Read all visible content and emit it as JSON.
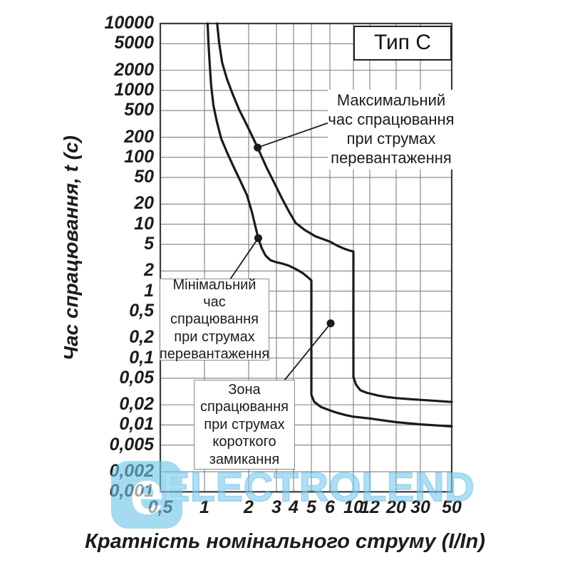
{
  "watermark": {
    "brand": "ELECTROLEND",
    "logo_letter": "e",
    "color": "#7dcdef"
  },
  "chart_data": {
    "type": "line",
    "title": "Тип С",
    "xlabel": "Кратність номінального струму (I/In)",
    "ylabel": "Час спрацювання, t (с)",
    "x_scale": "log",
    "y_scale": "log",
    "xlim": [
      0.5,
      50
    ],
    "ylim": [
      0.001,
      10000
    ],
    "grid": true,
    "x_ticks": [
      {
        "value": 0.5,
        "label": "0,5"
      },
      {
        "value": 1,
        "label": "1"
      },
      {
        "value": 2,
        "label": "2"
      },
      {
        "value": 3,
        "label": "3"
      },
      {
        "value": 4,
        "label": "4"
      },
      {
        "value": 5,
        "label": "5"
      },
      {
        "value": 6,
        "label": "6"
      },
      {
        "value": 10,
        "label": "10"
      },
      {
        "value": 12,
        "label": "12"
      },
      {
        "value": 20,
        "label": "20"
      },
      {
        "value": 30,
        "label": "30"
      },
      {
        "value": 50,
        "label": "50"
      }
    ],
    "y_ticks": [
      {
        "value": 10000,
        "label": "10000"
      },
      {
        "value": 5000,
        "label": "5000"
      },
      {
        "value": 2000,
        "label": "2000"
      },
      {
        "value": 1000,
        "label": "1000"
      },
      {
        "value": 500,
        "label": "500"
      },
      {
        "value": 200,
        "label": "200"
      },
      {
        "value": 100,
        "label": "100"
      },
      {
        "value": 50,
        "label": "50"
      },
      {
        "value": 20,
        "label": "20"
      },
      {
        "value": 10,
        "label": "10"
      },
      {
        "value": 5,
        "label": "5"
      },
      {
        "value": 2,
        "label": "2"
      },
      {
        "value": 1,
        "label": "1"
      },
      {
        "value": 0.5,
        "label": "0,5"
      },
      {
        "value": 0.2,
        "label": "0,2"
      },
      {
        "value": 0.1,
        "label": "0,1"
      },
      {
        "value": 0.05,
        "label": "0,05"
      },
      {
        "value": 0.02,
        "label": "0,02"
      },
      {
        "value": 0.01,
        "label": "0,01"
      },
      {
        "value": 0.005,
        "label": "0,005"
      },
      {
        "value": 0.002,
        "label": "0,002"
      },
      {
        "value": 0.001,
        "label": "0,001"
      }
    ],
    "series": [
      {
        "name": "max_trip_time",
        "points": [
          [
            1.22,
            10000
          ],
          [
            1.26,
            5000
          ],
          [
            1.32,
            2600
          ],
          [
            1.42,
            1500
          ],
          [
            1.55,
            900
          ],
          [
            1.72,
            520
          ],
          [
            1.95,
            300
          ],
          [
            2.28,
            140
          ],
          [
            2.6,
            70
          ],
          [
            2.9,
            42
          ],
          [
            3.3,
            24
          ],
          [
            3.7,
            15.5
          ],
          [
            4.1,
            10.5
          ],
          [
            4.6,
            8.2
          ],
          [
            5.2,
            6.6
          ],
          [
            6.0,
            5.5
          ],
          [
            7.0,
            4.8
          ],
          [
            8.2,
            4.3
          ],
          [
            9.2,
            4.05
          ],
          [
            10,
            3.9
          ],
          [
            10,
            0.052
          ],
          [
            10.3,
            0.04
          ],
          [
            10.8,
            0.033
          ],
          [
            11.5,
            0.0305
          ],
          [
            12.5,
            0.029
          ],
          [
            14,
            0.0275
          ],
          [
            17,
            0.026
          ],
          [
            20,
            0.0252
          ],
          [
            25,
            0.0243
          ],
          [
            30,
            0.0237
          ],
          [
            40,
            0.0228
          ],
          [
            50,
            0.022
          ]
        ]
      },
      {
        "name": "min_trip_time",
        "points": [
          [
            1.05,
            10000
          ],
          [
            1.065,
            5000
          ],
          [
            1.085,
            2500
          ],
          [
            1.11,
            1200
          ],
          [
            1.15,
            600
          ],
          [
            1.21,
            350
          ],
          [
            1.3,
            190
          ],
          [
            1.42,
            120
          ],
          [
            1.58,
            72
          ],
          [
            1.75,
            45
          ],
          [
            1.95,
            27
          ],
          [
            2.1,
            15
          ],
          [
            2.2,
            9.5
          ],
          [
            2.3,
            6.2
          ],
          [
            2.42,
            4.4
          ],
          [
            2.56,
            3.4
          ],
          [
            2.75,
            2.9
          ],
          [
            3.0,
            2.7
          ],
          [
            3.3,
            2.58
          ],
          [
            3.7,
            2.4
          ],
          [
            4.1,
            2.15
          ],
          [
            4.5,
            1.85
          ],
          [
            4.8,
            1.6
          ],
          [
            5,
            1.45
          ],
          [
            5,
            0.028
          ],
          [
            5.15,
            0.022
          ],
          [
            5.5,
            0.0185
          ],
          [
            6,
            0.0165
          ],
          [
            7,
            0.0152
          ],
          [
            8.5,
            0.014
          ],
          [
            10,
            0.0133
          ],
          [
            12,
            0.0125
          ],
          [
            15,
            0.0118
          ],
          [
            20,
            0.011
          ],
          [
            30,
            0.0102
          ],
          [
            40,
            0.0098
          ],
          [
            50,
            0.0095
          ]
        ]
      }
    ],
    "annotations": [
      {
        "id": "max",
        "lines": [
          "Максимальний",
          "час спрацювання",
          "при струмах",
          "перевантаження"
        ],
        "dot": [
          2.28,
          140
        ]
      },
      {
        "id": "min",
        "lines": [
          "Мінімальний",
          "час спрацювання",
          "при струмах",
          "перевантаження"
        ],
        "dot": [
          2.3,
          6.2
        ]
      },
      {
        "id": "zone",
        "lines": [
          "Зона",
          "спрацювання",
          "при струмах",
          "короткого",
          "замикання"
        ],
        "dot": [
          6.1,
          0.33
        ]
      }
    ],
    "colors": {
      "curve": "#1b1b1b",
      "grid": "#7e7e7e",
      "border": "#3c3c3c"
    }
  }
}
